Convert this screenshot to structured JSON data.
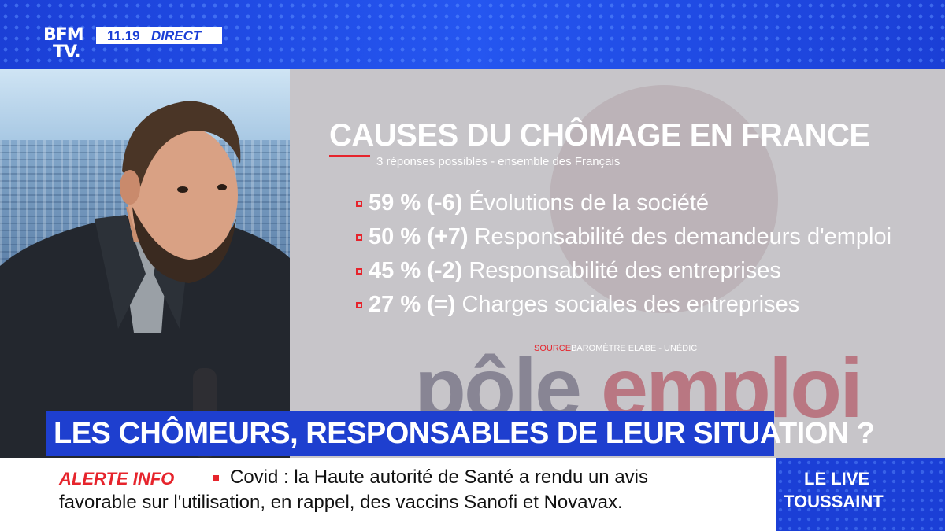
{
  "channel": {
    "logo_line1": "BFM",
    "logo_line2": "TV.",
    "time": "11.19",
    "status": "DIRECT"
  },
  "panel": {
    "title": "CAUSES DU CHÔMAGE EN FRANCE",
    "subtitle": "3 réponses possibles - ensemble des Français",
    "items": [
      {
        "pct": "59 % (-6)",
        "desc": "Évolutions de la société"
      },
      {
        "pct": "50 % (+7)",
        "desc": "Responsabilité des demandeurs d'emploi"
      },
      {
        "pct": "45 % (-2)",
        "desc": "Responsabilité des entreprises"
      },
      {
        "pct": "27 % (=)",
        "desc": "Charges sociales des entreprises"
      }
    ],
    "source_label": "SOURCE",
    "source_text": "BAROMÈTRE ELABE - UNÉDIC",
    "bg_text_a": "pôle ",
    "bg_text_b": "emploi"
  },
  "headline": "LES CHÔMEURS, RESPONSABLES DE LEUR SITUATION ?",
  "ticker": {
    "alert_label": "ALERTE INFO",
    "line1": "Covid : la Haute autorité de Santé a rendu un avis",
    "line2": "favorable sur l'utilisation, en rappel, des vaccins Sanofi et Novavax."
  },
  "live": {
    "line1": "LE LIVE",
    "line2": "TOUSSAINT"
  },
  "colors": {
    "brand_blue": "#1e3fcf",
    "alert_red": "#e6242c"
  }
}
